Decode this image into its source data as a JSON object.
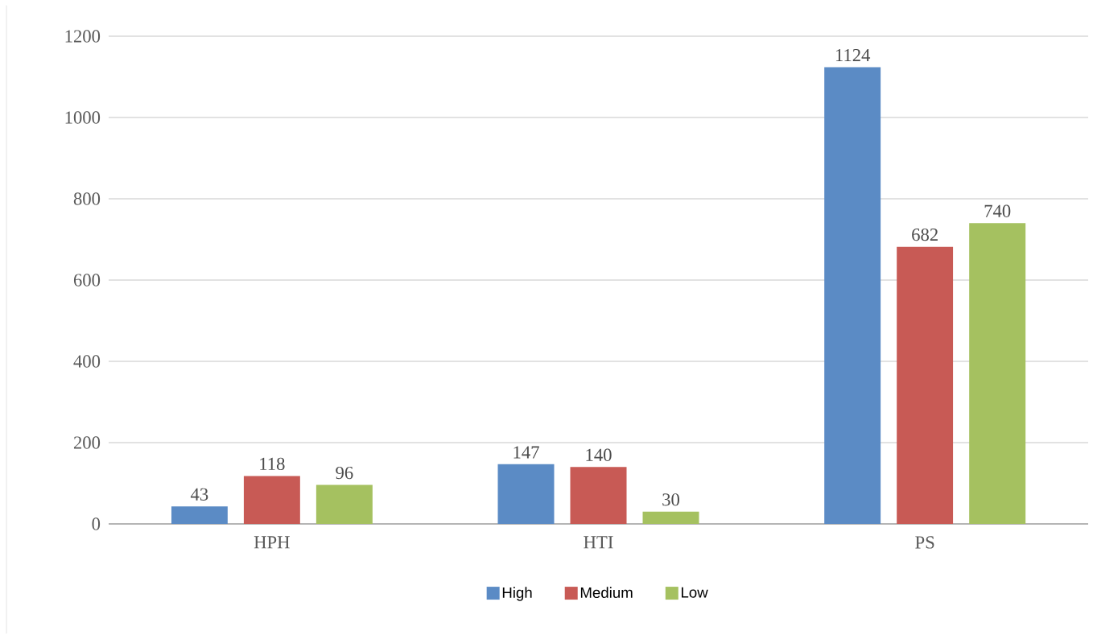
{
  "chart_data": {
    "type": "bar",
    "categories": [
      "HPH",
      "HTI",
      "PS"
    ],
    "series": [
      {
        "name": "High",
        "color": "#5b8bc5",
        "values": [
          43,
          147,
          1124
        ]
      },
      {
        "name": "Medium",
        "color": "#c85a55",
        "values": [
          118,
          140,
          682
        ]
      },
      {
        "name": "Low",
        "color": "#a5c160",
        "values": [
          96,
          30,
          740
        ]
      }
    ],
    "ylim": [
      0,
      1200
    ],
    "yticks": [
      0,
      200,
      400,
      600,
      800,
      1000,
      1200
    ],
    "grid": "y",
    "legend": "bottom",
    "data_labels": true
  }
}
